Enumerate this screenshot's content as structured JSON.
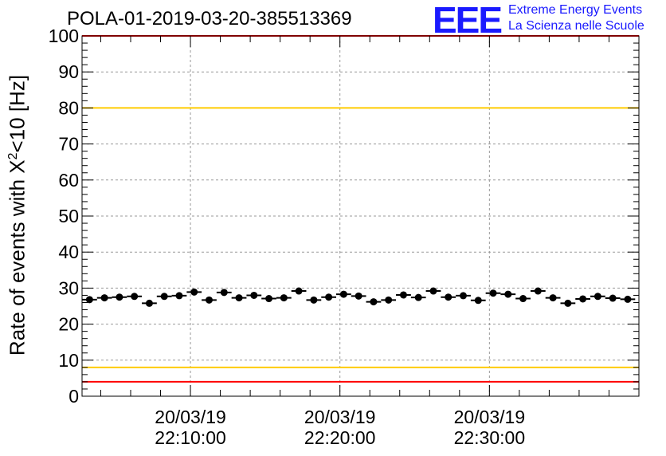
{
  "header": {
    "title": "POLA-01-2019-03-20-385513369",
    "logo_mark": "EEE",
    "logo_line1": "Extreme Energy Events",
    "logo_line2": "La Scienza nelle Scuole"
  },
  "colors": {
    "red_limit": "#ff0000",
    "yellow_limit": "#ffcc00",
    "marker": "#000000",
    "logo": "#1a1aff",
    "grid": "#999999"
  },
  "chart_data": {
    "type": "scatter",
    "title": "POLA-01-2019-03-20-385513369",
    "ylabel": {
      "prefix": "Rate of events with X",
      "sup": "2",
      "suffix": "<10 [Hz]"
    },
    "xlabel": "",
    "xlim": [
      "2019-03-20 22:02:45",
      "2019-03-20 22:40:00"
    ],
    "ylim": [
      0,
      100
    ],
    "y_ticks": [
      0,
      10,
      20,
      30,
      40,
      50,
      60,
      70,
      80,
      90,
      100
    ],
    "x_ticks": [
      {
        "time": "2019-03-20 22:10:00",
        "line1": "20/03/19",
        "line2": "22:10:00"
      },
      {
        "time": "2019-03-20 22:20:00",
        "line1": "20/03/19",
        "line2": "22:20:00"
      },
      {
        "time": "2019-03-20 22:30:00",
        "line1": "20/03/19",
        "line2": "22:30:00"
      }
    ],
    "grid": true,
    "reference_lines": [
      {
        "y": 4,
        "color": "#ff0000"
      },
      {
        "y": 8,
        "color": "#ffcc00"
      },
      {
        "y": 80,
        "color": "#ffcc00"
      },
      {
        "y": 100,
        "color": "#ff0000"
      }
    ],
    "series": [
      {
        "x": [
          "22:03:15",
          "22:04:15",
          "22:05:15",
          "22:06:15",
          "22:07:15",
          "22:08:15",
          "22:09:15",
          "22:10:15",
          "22:11:15",
          "22:12:15",
          "22:13:15",
          "22:14:15",
          "22:15:15",
          "22:16:15",
          "22:17:15",
          "22:18:15",
          "22:19:15",
          "22:20:15",
          "22:21:15",
          "22:22:15",
          "22:23:15",
          "22:24:15",
          "22:25:15",
          "22:26:15",
          "22:27:15",
          "22:28:15",
          "22:29:15",
          "22:30:15",
          "22:31:15",
          "22:32:15",
          "22:33:15",
          "22:34:15",
          "22:35:15",
          "22:36:15",
          "22:37:15",
          "22:38:15",
          "22:39:15"
        ],
        "values": [
          26.8,
          27.3,
          27.5,
          27.7,
          25.8,
          27.7,
          27.9,
          28.9,
          26.7,
          28.8,
          27.3,
          28.0,
          27.1,
          27.3,
          29.2,
          26.7,
          27.5,
          28.3,
          27.8,
          26.2,
          26.7,
          28.1,
          27.4,
          29.2,
          27.5,
          27.9,
          26.6,
          28.6,
          28.3,
          27.1,
          29.2,
          27.3,
          25.8,
          27.0,
          27.7,
          27.2,
          26.9
        ]
      }
    ]
  }
}
